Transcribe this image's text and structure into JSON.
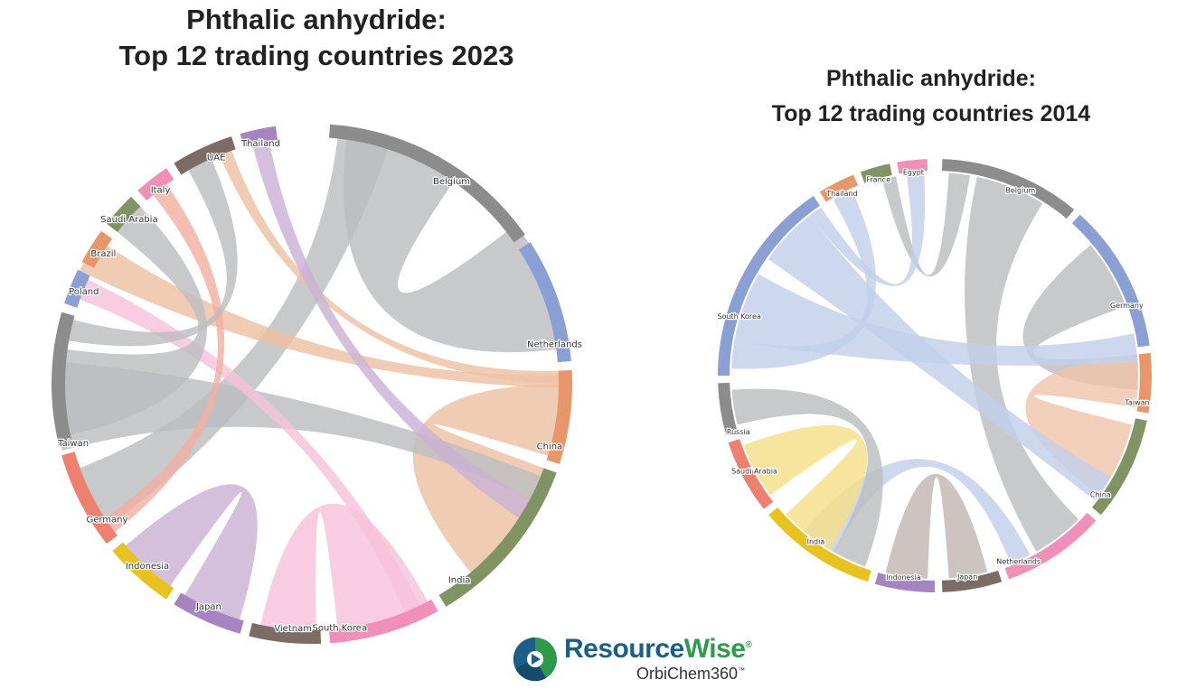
{
  "charts": [
    {
      "title_line1": "Phthalic anhydride:",
      "title_line2": "Top 12 trading countries 2023",
      "segments": [
        {
          "name": "Belgium",
          "color": "#8c8c8c"
        },
        {
          "name": "Netherlands",
          "color": "#8a9fd4"
        },
        {
          "name": "China",
          "color": "#e8976a"
        },
        {
          "name": "India",
          "color": "#7f9363"
        },
        {
          "name": "South Korea",
          "color": "#f090b8"
        },
        {
          "name": "Vietnam",
          "color": "#7d6b66"
        },
        {
          "name": "Japan",
          "color": "#a684c0"
        },
        {
          "name": "Indonesia",
          "color": "#e8c21e"
        },
        {
          "name": "Germany",
          "color": "#ee8070"
        },
        {
          "name": "Taiwan",
          "color": "#8c8c8c"
        },
        {
          "name": "Poland",
          "color": "#8a9fd4"
        },
        {
          "name": "Brazil",
          "color": "#e8976a"
        },
        {
          "name": "Saudi Arabia",
          "color": "#7f9363"
        },
        {
          "name": "Italy",
          "color": "#f090b8"
        },
        {
          "name": "UAE",
          "color": "#7d6b66"
        },
        {
          "name": "Thailand",
          "color": "#a684c0"
        }
      ]
    },
    {
      "title_line1": "Phthalic anhydride:",
      "title_line2": "Top 12 trading countries 2014",
      "segments": [
        {
          "name": "Belgium",
          "color": "#8c8c8c"
        },
        {
          "name": "Germany",
          "color": "#8a9fd4"
        },
        {
          "name": "Taiwan",
          "color": "#e8976a"
        },
        {
          "name": "China",
          "color": "#7f9363"
        },
        {
          "name": "Netherlands",
          "color": "#f090b8"
        },
        {
          "name": "Japan",
          "color": "#7d6b66"
        },
        {
          "name": "Indonesia",
          "color": "#a684c0"
        },
        {
          "name": "India",
          "color": "#e8c21e"
        },
        {
          "name": "Saudi Arabia",
          "color": "#ee8070"
        },
        {
          "name": "Russia",
          "color": "#8c8c8c"
        },
        {
          "name": "South Korea",
          "color": "#8a9fd4"
        },
        {
          "name": "Thailand",
          "color": "#e8976a"
        },
        {
          "name": "France",
          "color": "#7f9363"
        },
        {
          "name": "Egypt",
          "color": "#f090b8"
        }
      ]
    }
  ],
  "logo": {
    "brand_part1": "Resource",
    "brand_part2": "Wise",
    "brand_mark": "®",
    "product": "OrbiChem360",
    "product_mark": "™",
    "icon": "resourcewise-logo-icon"
  }
}
